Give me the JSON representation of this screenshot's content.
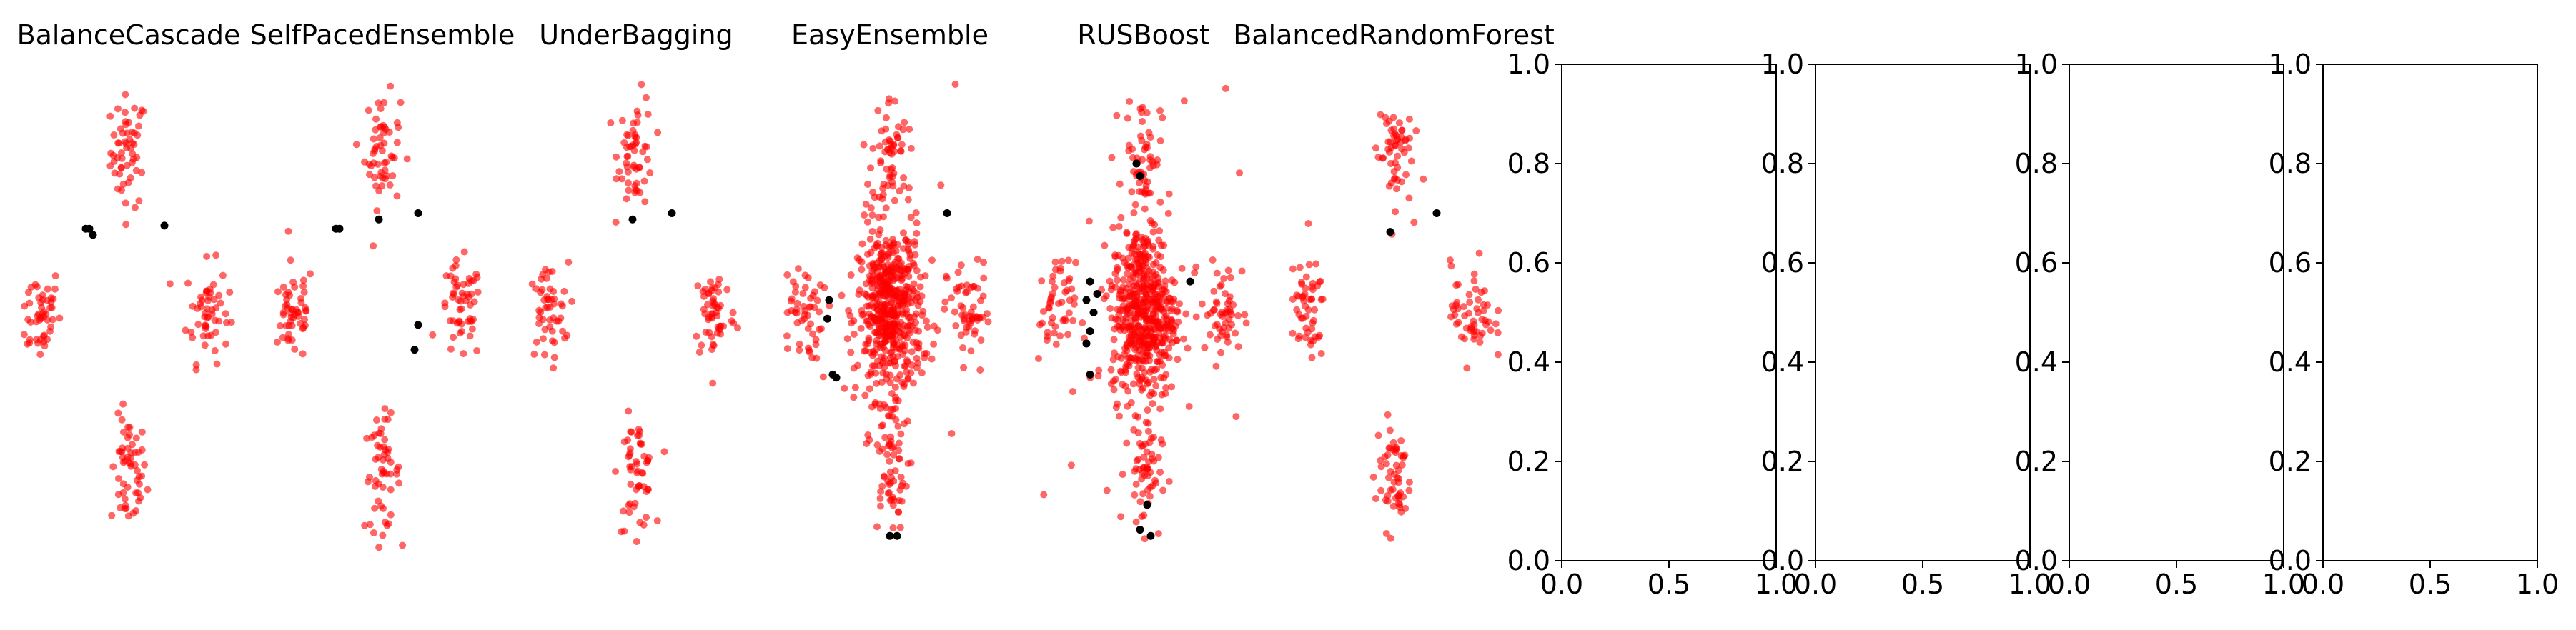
{
  "chart_data": [
    {
      "type": "scatter",
      "title": "BalanceCascade",
      "axis": "off",
      "series": [
        {
          "color": "#ff0000",
          "points": "outer+center-sparse"
        },
        {
          "color": "#000000",
          "points": [
            [
              -1.0,
              1.25
            ],
            [
              -1.1,
              1.35
            ],
            [
              -1.2,
              1.35
            ],
            [
              1.0,
              1.4
            ]
          ]
        }
      ]
    },
    {
      "type": "scatter",
      "title": "SelfPacedEnsemble",
      "axis": "off",
      "series": [
        {
          "color": "#ff0000",
          "points": "outer+center-sparse"
        },
        {
          "color": "#000000",
          "points": [
            [
              -1.3,
              1.35
            ],
            [
              -1.2,
              1.35
            ],
            [
              -0.1,
              1.5
            ],
            [
              1.0,
              1.6
            ],
            [
              1.0,
              -0.2
            ],
            [
              0.9,
              -0.6
            ]
          ]
        }
      ]
    },
    {
      "type": "scatter",
      "title": "UnderBagging",
      "axis": "off",
      "series": [
        {
          "color": "#ff0000",
          "points": "outer+center-sparse"
        },
        {
          "color": "#000000",
          "points": [
            [
              -0.1,
              1.5
            ],
            [
              1.0,
              1.6
            ]
          ]
        }
      ]
    },
    {
      "type": "scatter",
      "title": "EasyEnsemble",
      "axis": "off",
      "series": [
        {
          "color": "#ff0000",
          "points": "outer+dense-center"
        },
        {
          "color": "#000000",
          "points": [
            [
              -1.7,
              0.2
            ],
            [
              -1.75,
              -0.1
            ],
            [
              -1.6,
              -1.0
            ],
            [
              -1.5,
              -1.05
            ],
            [
              0.0,
              -3.6
            ],
            [
              0.2,
              -3.6
            ],
            [
              1.6,
              1.6
            ]
          ]
        }
      ]
    },
    {
      "type": "scatter",
      "title": "RUSBoost",
      "axis": "off",
      "series": [
        {
          "color": "#ff0000",
          "points": "outer+dense-center"
        },
        {
          "color": "#000000",
          "points": [
            [
              -1.5,
              0.5
            ],
            [
              -1.6,
              0.2
            ],
            [
              -1.4,
              0.0
            ],
            [
              -1.5,
              -0.3
            ],
            [
              -1.3,
              0.3
            ],
            [
              -1.6,
              -0.5
            ],
            [
              -1.5,
              -1.0
            ],
            [
              -0.2,
              2.4
            ],
            [
              -0.1,
              2.2
            ],
            [
              1.3,
              0.5
            ],
            [
              0.1,
              -3.1
            ],
            [
              -0.1,
              -3.5
            ],
            [
              0.2,
              -3.6
            ]
          ]
        }
      ]
    },
    {
      "type": "scatter",
      "title": "BalancedRandomForest",
      "axis": "off",
      "series": [
        {
          "color": "#ff0000",
          "points": "outer+center-sparse"
        },
        {
          "color": "#000000",
          "points": [
            [
              -0.1,
              1.3
            ],
            [
              1.2,
              1.6
            ]
          ]
        }
      ]
    },
    {
      "type": "empty",
      "title": "",
      "xlim": [
        0.0,
        1.0
      ],
      "ylim": [
        0.0,
        1.0
      ],
      "xticks": [
        "0.0",
        "0.5",
        "1.0"
      ],
      "yticks": [
        "0.0",
        "0.2",
        "0.4",
        "0.6",
        "0.8",
        "1.0"
      ]
    },
    {
      "type": "empty",
      "title": "",
      "xlim": [
        0.0,
        1.0
      ],
      "ylim": [
        0.0,
        1.0
      ],
      "xticks": [
        "0.0",
        "0.5",
        "1.0"
      ],
      "yticks": [
        "0.0",
        "0.2",
        "0.4",
        "0.6",
        "0.8",
        "1.0"
      ]
    },
    {
      "type": "empty",
      "title": "",
      "xlim": [
        0.0,
        1.0
      ],
      "ylim": [
        0.0,
        1.0
      ],
      "xticks": [
        "0.0",
        "0.5",
        "1.0"
      ],
      "yticks": [
        "0.0",
        "0.2",
        "0.4",
        "0.6",
        "0.8",
        "1.0"
      ]
    },
    {
      "type": "empty",
      "title": "",
      "xlim": [
        0.0,
        1.0
      ],
      "ylim": [
        0.0,
        1.0
      ],
      "xticks": [
        "0.0",
        "0.5",
        "1.0"
      ],
      "yticks": [
        "0.0",
        "0.2",
        "0.4",
        "0.6",
        "0.8",
        "1.0"
      ]
    }
  ],
  "colors": {
    "majority": "#ff0000",
    "minority": "#000000",
    "axes": "#000000"
  }
}
